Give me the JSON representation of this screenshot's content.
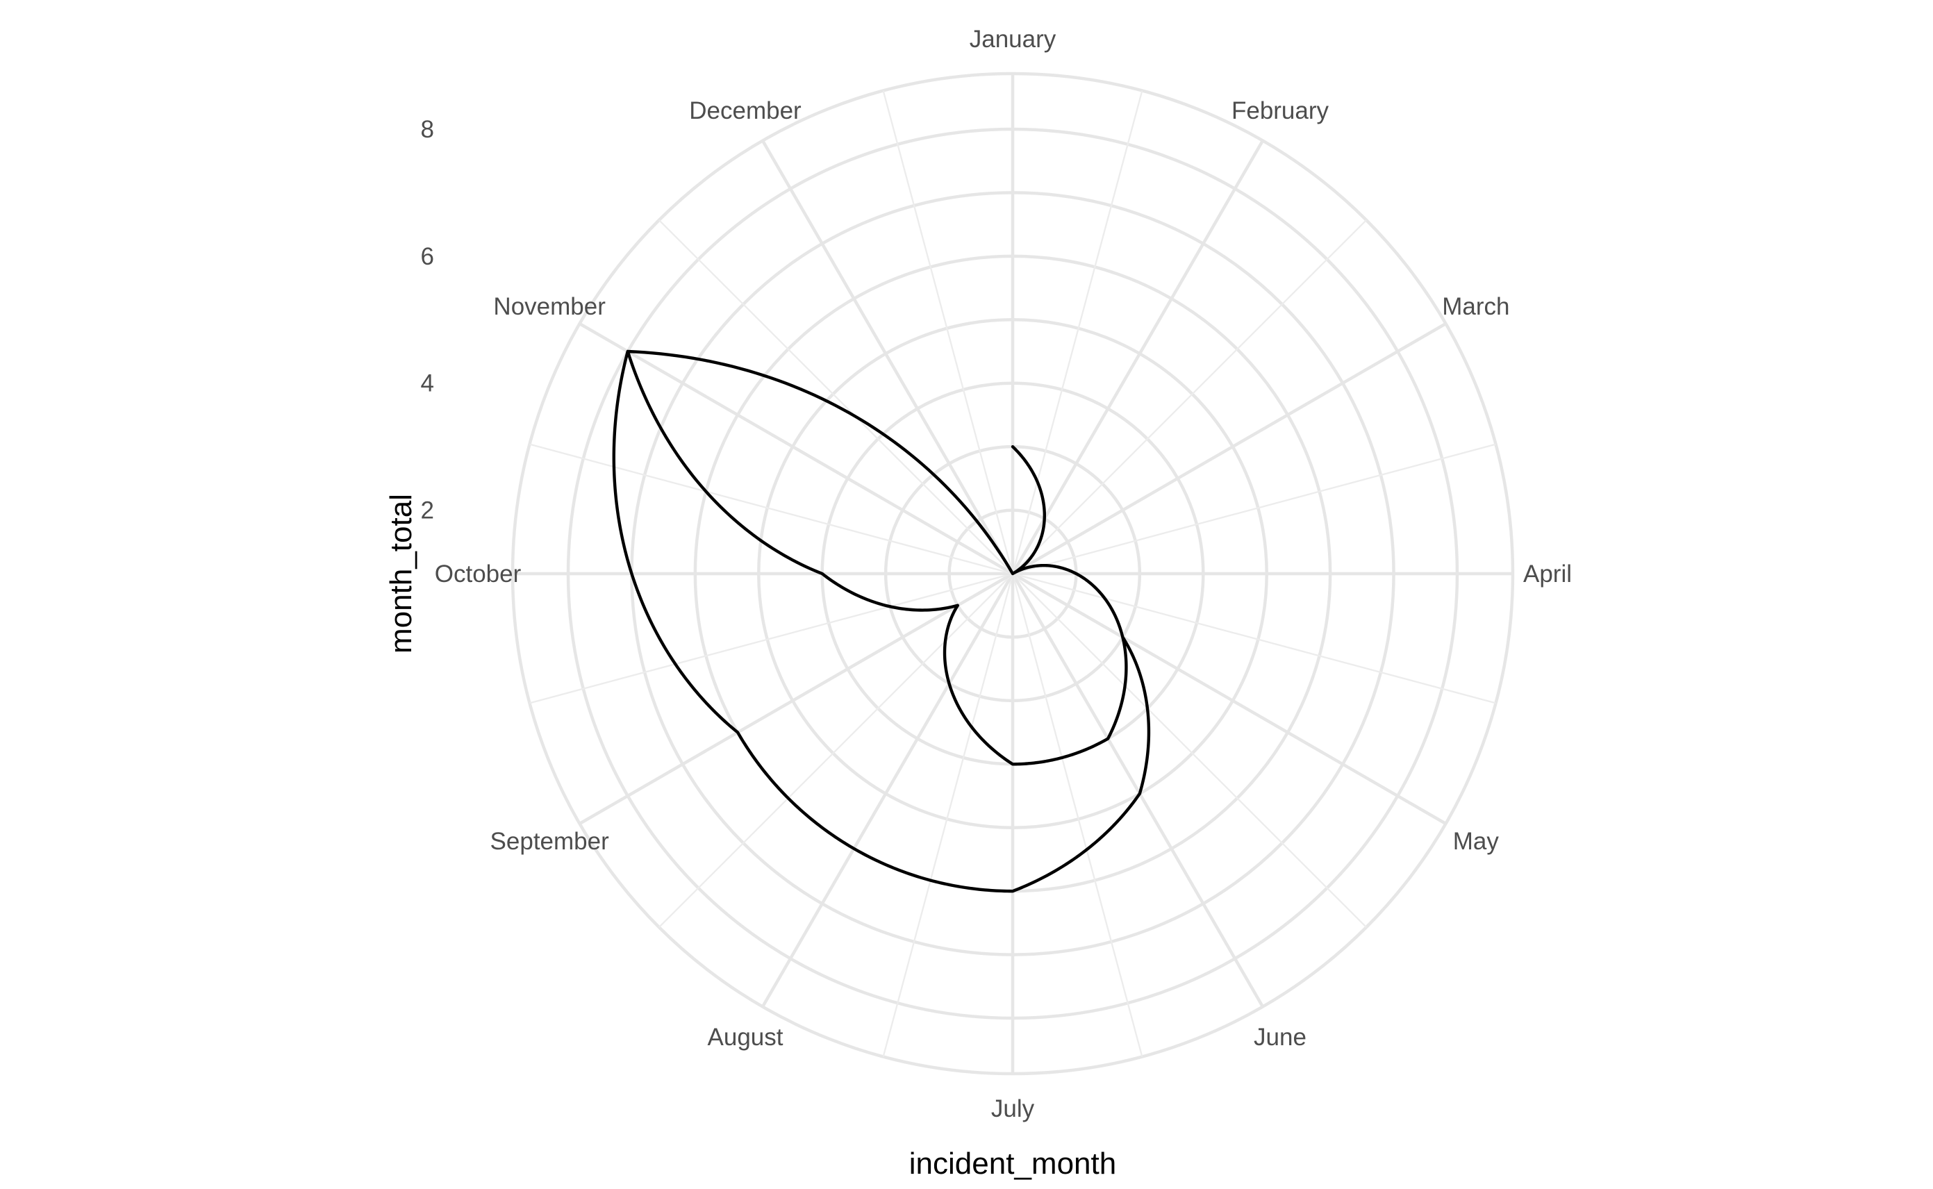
{
  "chart_data": {
    "type": "line",
    "coord": "polar",
    "x_axis": {
      "title": "incident_month",
      "categories": [
        "January",
        "February",
        "March",
        "April",
        "May",
        "June",
        "July",
        "August",
        "September",
        "October",
        "November",
        "December"
      ]
    },
    "y_axis": {
      "title": "month_total",
      "ticks": [
        "2",
        "4",
        "6",
        "8"
      ],
      "tick_values": [
        2,
        4,
        6,
        8
      ],
      "range": [
        1,
        8
      ]
    },
    "series": [
      {
        "points": [
          {
            "month": "January",
            "value": 3
          },
          {
            "month": "February",
            "value": 2
          },
          {
            "month": "March",
            "value": 1
          },
          {
            "month": "April",
            "value": 2
          },
          {
            "month": "May",
            "value": 3
          },
          {
            "month": "June",
            "value": 4
          },
          {
            "month": "July",
            "value": 4
          },
          {
            "month": "August",
            "value": 3
          },
          {
            "month": "September",
            "value": 2
          },
          {
            "month": "October",
            "value": 4
          },
          {
            "month": "November",
            "value": 8
          },
          {
            "month": "December",
            "value": 1
          },
          {
            "month": "January",
            "value": 1
          },
          {
            "month": "February",
            "value": 1
          },
          {
            "month": "March",
            "value": 1
          },
          {
            "month": "April",
            "value": 2
          },
          {
            "month": "May",
            "value": 3
          },
          {
            "month": "June",
            "value": 5
          },
          {
            "month": "July",
            "value": 6
          },
          {
            "month": "August",
            "value": 6
          },
          {
            "month": "September",
            "value": 6
          },
          {
            "month": "October",
            "value": 7
          },
          {
            "month": "November",
            "value": 8
          }
        ]
      }
    ],
    "colors": {
      "line": "#000000",
      "grid": "#e6e6e6",
      "text": "#4d4d4d"
    },
    "grid": true,
    "legend": "none"
  }
}
